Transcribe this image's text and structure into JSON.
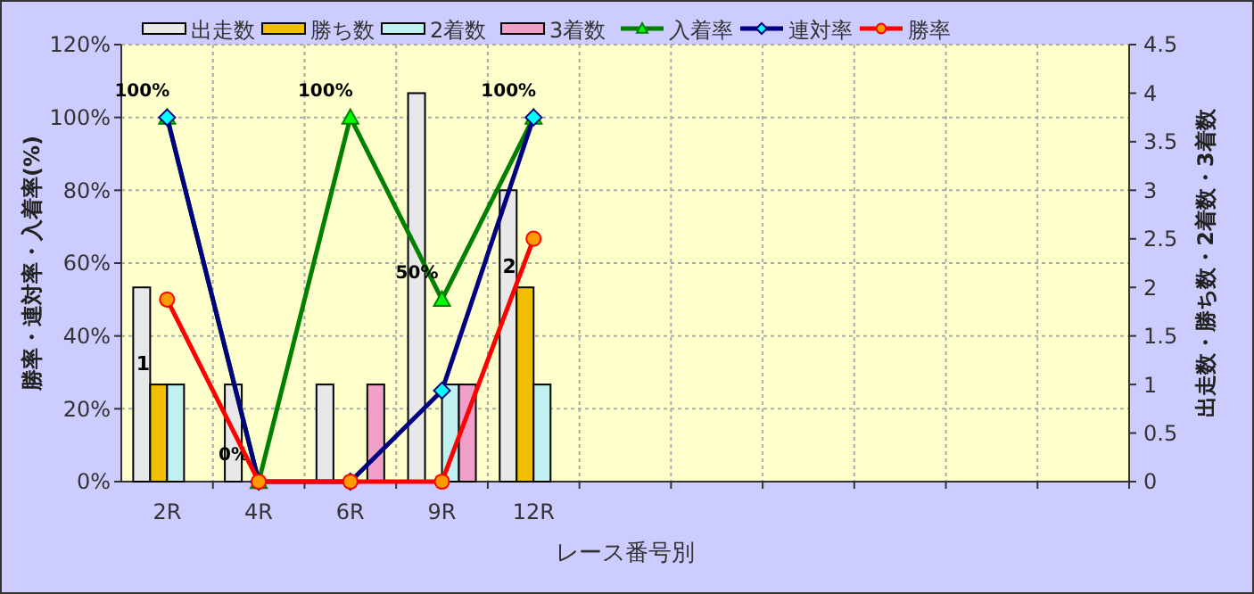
{
  "chart_data": {
    "type": "bar",
    "xlabel": "レース番号別",
    "ylabel": "勝率・連対率・入着率(%)",
    "y2label": "出走数・勝ち数・2着数・3着数",
    "categories": [
      "2R",
      "4R",
      "6R",
      "9R",
      "12R",
      null,
      null,
      null,
      null,
      null,
      null
    ],
    "series": [
      {
        "name": "出走数",
        "axis": "y2",
        "color": "#e8e8e8",
        "values": [
          2,
          1,
          1,
          4,
          3,
          null,
          null,
          null,
          null,
          null,
          null
        ]
      },
      {
        "name": "勝ち数",
        "axis": "y2",
        "color": "#f0c000",
        "values": [
          1,
          0,
          0,
          0,
          2,
          null,
          null,
          null,
          null,
          null,
          null
        ],
        "value_labels": [
          "1",
          null,
          null,
          null,
          "2",
          null,
          null,
          null,
          null,
          null,
          null
        ]
      },
      {
        "name": "2着数",
        "axis": "y2",
        "color": "#c0f0f0",
        "values": [
          1,
          0,
          0,
          1,
          1,
          null,
          null,
          null,
          null,
          null,
          null
        ]
      },
      {
        "name": "3着数",
        "axis": "y2",
        "color": "#f0a0c8",
        "values": [
          0,
          0,
          1,
          1,
          0,
          null,
          null,
          null,
          null,
          null,
          null
        ]
      },
      {
        "name": "入着率",
        "type": "line",
        "axis": "y",
        "color": "#008000",
        "marker": "triangle",
        "values": [
          100,
          0,
          100,
          50,
          100,
          null,
          null,
          null,
          null,
          null,
          null
        ],
        "value_labels": [
          "100%",
          "0%",
          "100%",
          "50%",
          "100%",
          null,
          null,
          null,
          null,
          null,
          null
        ]
      },
      {
        "name": "連対率",
        "type": "line",
        "axis": "y",
        "color": "#000080",
        "marker": "diamond",
        "values": [
          100,
          0,
          0,
          25,
          100,
          null,
          null,
          null,
          null,
          null,
          null
        ]
      },
      {
        "name": "勝率",
        "type": "line",
        "axis": "y",
        "color": "#ff0000",
        "marker": "circle",
        "values": [
          50,
          0,
          0,
          0,
          66.7,
          null,
          null,
          null,
          null,
          null,
          null
        ]
      }
    ],
    "ylim": [
      0,
      120
    ],
    "yticks": [
      {
        "value": 0,
        "label": "0%"
      },
      {
        "value": 20,
        "label": "20%"
      },
      {
        "value": 40,
        "label": "40%"
      },
      {
        "value": 60,
        "label": "60%"
      },
      {
        "value": 80,
        "label": "80%"
      },
      {
        "value": 100,
        "label": "100%"
      },
      {
        "value": 120,
        "label": "120%"
      }
    ],
    "y2lim": [
      0,
      4.5
    ],
    "y2ticks": [
      0,
      0.5,
      1,
      1.5,
      2,
      2.5,
      3,
      3.5,
      4,
      4.5
    ],
    "grid": true,
    "legend": "top"
  }
}
